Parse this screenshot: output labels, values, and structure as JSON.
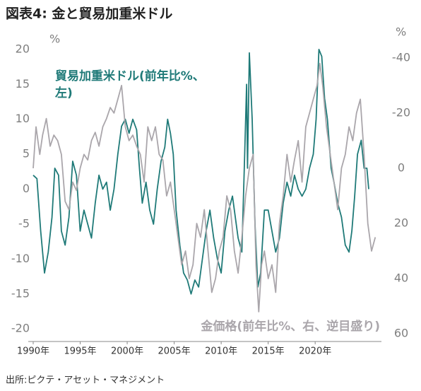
{
  "chart_data": {
    "type": "line",
    "title": "図表4: 金と貿易加重米ドル",
    "y_unit": "%",
    "y2_unit": "%",
    "source": "出所:ピクテ・アセット・マネジメント",
    "xlim": [
      1990,
      2026.9
    ],
    "xticks": [
      {
        "value": 1990,
        "label": "1990年"
      },
      {
        "value": 1995,
        "label": "1995年"
      },
      {
        "value": 2000,
        "label": "2000年"
      },
      {
        "value": 2005,
        "label": "2005年"
      },
      {
        "value": 2010,
        "label": "2010年"
      },
      {
        "value": 2015,
        "label": "2015年"
      },
      {
        "value": 2020,
        "label": "2020年"
      }
    ],
    "ylim": [
      -21.8,
      21
    ],
    "yticks": [
      20,
      15,
      10,
      5,
      0,
      -5,
      -10,
      -15,
      -20
    ],
    "y2lim": [
      -45.6,
      62.8
    ],
    "y2_inverted": true,
    "y2ticks": [
      -40,
      -20,
      0,
      20,
      40,
      60
    ],
    "grid": false,
    "series": [
      {
        "name_lines": [
          "貿易加重米ドル(前年比%、",
          "左)"
        ],
        "color": "#1f7a78",
        "axis": "y",
        "x": [
          1990.0,
          1990.4,
          1990.8,
          1991.2,
          1991.6,
          1992.0,
          1992.3,
          1992.7,
          1993.0,
          1993.4,
          1993.8,
          1994.2,
          1994.6,
          1995.0,
          1995.4,
          1995.8,
          1996.2,
          1996.6,
          1997.0,
          1997.4,
          1997.8,
          1998.2,
          1998.6,
          1999.0,
          1999.4,
          1999.8,
          2000.2,
          2000.6,
          2001.0,
          2001.3,
          2001.6,
          2002.0,
          2002.4,
          2002.8,
          2003.2,
          2003.6,
          2004.0,
          2004.3,
          2004.6,
          2004.9,
          2005.2,
          2005.6,
          2006.0,
          2006.4,
          2006.8,
          2007.2,
          2007.6,
          2008.0,
          2008.4,
          2008.8,
          2009.2,
          2009.6,
          2010.0,
          2010.4,
          2010.8,
          2011.2,
          2011.5,
          2011.8,
          2012.2,
          2012.5,
          2012.7,
          2012.8,
          2013.0,
          2013.3,
          2013.6,
          2013.9,
          2014.2,
          2014.6,
          2015.0,
          2015.4,
          2015.8,
          2016.2,
          2016.6,
          2017.0,
          2017.4,
          2017.8,
          2018.2,
          2018.6,
          2019.0,
          2019.4,
          2019.8,
          2020.1,
          2020.4,
          2020.7,
          2021.0,
          2021.3,
          2021.7,
          2022.0,
          2022.4,
          2022.8,
          2023.2,
          2023.6,
          2023.9,
          2024.2,
          2024.5,
          2024.9,
          2025.2,
          2025.5,
          2025.7
        ],
        "values": [
          2,
          1.5,
          -6,
          -12,
          -9,
          -4,
          3,
          2,
          -6,
          -8,
          -4,
          4,
          2,
          -6,
          -3,
          -5,
          -7,
          -2,
          2,
          0,
          1,
          -3,
          0,
          5,
          9,
          10,
          8,
          10,
          8.5,
          3,
          -2,
          1,
          -3,
          -5,
          0,
          4,
          6,
          10,
          8,
          5,
          -3,
          -8,
          -12,
          -13,
          -15,
          -13,
          -14,
          -10,
          -6,
          -3,
          -7,
          -10,
          -12,
          -6,
          -3,
          -1,
          -4,
          -7,
          -9,
          5,
          15,
          3,
          19.5,
          10,
          -5,
          -14,
          -12,
          -3,
          -3,
          -6,
          -9,
          -7,
          -2,
          1,
          -1,
          2,
          0,
          -1,
          0,
          3,
          5,
          10,
          20,
          19,
          13,
          10,
          3,
          1,
          -2,
          -4,
          -8,
          -9,
          -6,
          -1,
          5,
          7,
          3,
          3,
          0
        ]
      },
      {
        "name_lines": [
          "金価格(前年比%、右、逆目盛り)"
        ],
        "color": "#aaa6ab",
        "axis": "y2",
        "x": [
          1990.0,
          1990.3,
          1990.7,
          1991.0,
          1991.4,
          1991.8,
          1992.2,
          1992.6,
          1993.0,
          1993.4,
          1993.8,
          1994.2,
          1994.6,
          1995.0,
          1995.4,
          1995.8,
          1996.2,
          1996.6,
          1997.0,
          1997.4,
          1997.8,
          1998.2,
          1998.6,
          1999.0,
          1999.4,
          1999.8,
          2000.2,
          2000.6,
          2001.0,
          2001.4,
          2001.8,
          2002.2,
          2002.6,
          2003.0,
          2003.4,
          2003.8,
          2004.2,
          2004.6,
          2005.0,
          2005.4,
          2005.8,
          2006.2,
          2006.6,
          2007.0,
          2007.4,
          2007.8,
          2008.2,
          2008.6,
          2009.0,
          2009.4,
          2009.8,
          2010.2,
          2010.6,
          2011.0,
          2011.4,
          2011.8,
          2012.2,
          2012.6,
          2013.0,
          2013.4,
          2013.7,
          2014.0,
          2014.3,
          2014.6,
          2015.0,
          2015.4,
          2015.8,
          2016.2,
          2016.6,
          2017.0,
          2017.4,
          2017.8,
          2018.2,
          2018.6,
          2019.0,
          2019.4,
          2019.8,
          2020.2,
          2020.5,
          2020.8,
          2021.2,
          2021.6,
          2022.0,
          2022.4,
          2022.8,
          2023.2,
          2023.6,
          2024.0,
          2024.4,
          2024.8,
          2025.2,
          2025.6,
          2026.0,
          2026.4
        ],
        "values": [
          0,
          -15,
          -5,
          -12,
          -18,
          -8,
          -12,
          -10,
          -5,
          12,
          15,
          5,
          8,
          0,
          -5,
          -3,
          -10,
          -13,
          -8,
          -15,
          -18,
          -22,
          -20,
          -25,
          -30,
          -15,
          -10,
          -12,
          -8,
          -5,
          5,
          -15,
          -10,
          -15,
          -5,
          -3,
          10,
          5,
          15,
          25,
          35,
          30,
          40,
          35,
          20,
          25,
          15,
          30,
          45,
          40,
          30,
          25,
          10,
          15,
          30,
          38,
          25,
          10,
          0,
          -5,
          35,
          52,
          35,
          30,
          40,
          35,
          45,
          20,
          10,
          -5,
          5,
          -3,
          -10,
          5,
          -15,
          -20,
          -25,
          -30,
          -38,
          -30,
          -15,
          -5,
          5,
          15,
          0,
          -5,
          -15,
          -10,
          -20,
          -25,
          -5,
          20,
          30,
          25
        ]
      }
    ]
  }
}
